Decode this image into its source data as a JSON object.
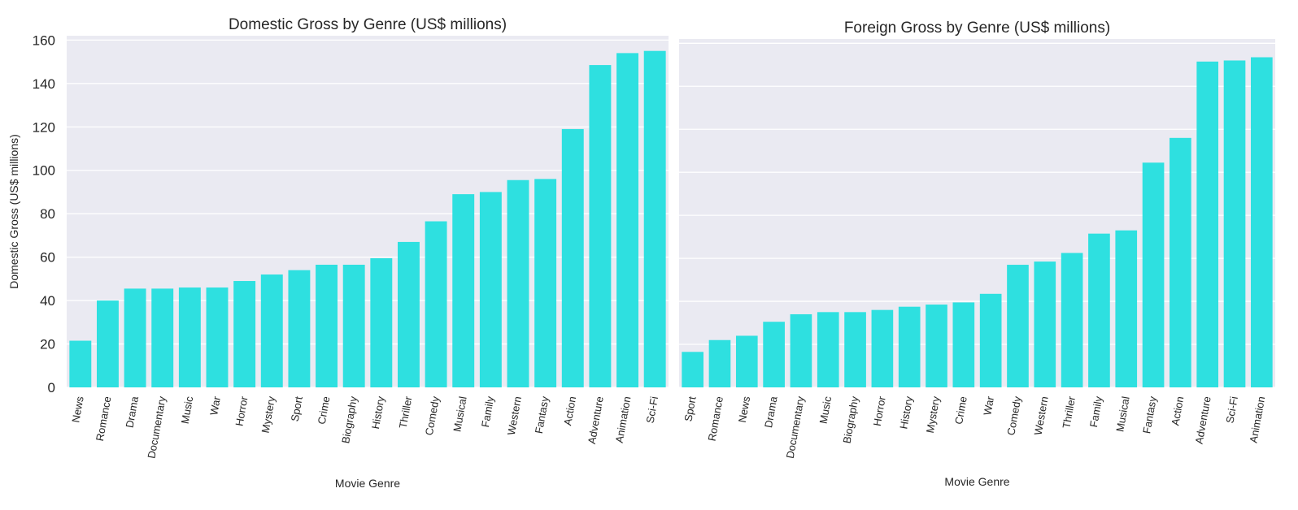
{
  "colors": {
    "bar": "#2ee0e0",
    "plot_background": "#eaeaf2",
    "grid": "#ffffff",
    "text": "#262626"
  },
  "chart_data": [
    {
      "type": "bar",
      "title": "Domestic Gross by Genre (US$ millions)",
      "xlabel": "Movie Genre",
      "ylabel": "Domestic Gross (US$ millions)",
      "ylim": [
        0,
        162
      ],
      "yticks": [
        0,
        20,
        40,
        60,
        80,
        100,
        120,
        140,
        160
      ],
      "show_ytick_labels": true,
      "grid": true,
      "categories": [
        "News",
        "Romance",
        "Drama",
        "Documentary",
        "Music",
        "War",
        "Horror",
        "Mystery",
        "Sport",
        "Crime",
        "Biography",
        "History",
        "Thriller",
        "Comedy",
        "Musical",
        "Family",
        "Western",
        "Fantasy",
        "Action",
        "Adventure",
        "Animation",
        "Sci-Fi"
      ],
      "values": [
        21.5,
        40,
        45.5,
        45.5,
        46,
        46,
        49,
        52,
        54,
        56.5,
        56.5,
        59.5,
        67,
        76.5,
        89,
        90,
        95.5,
        96,
        119,
        148.5,
        154,
        155
      ]
    },
    {
      "type": "bar",
      "title": "Foreign Gross by Genre (US$ millions)",
      "xlabel": "Movie Genre",
      "ylabel": "",
      "ylim": [
        0,
        162
      ],
      "yticks": [
        0,
        20,
        40,
        60,
        80,
        100,
        120,
        140,
        160
      ],
      "show_ytick_labels": false,
      "grid": true,
      "categories": [
        "Sport",
        "Romance",
        "News",
        "Drama",
        "Documentary",
        "Music",
        "Biography",
        "Horror",
        "History",
        "Mystery",
        "Crime",
        "War",
        "Comedy",
        "Western",
        "Thriller",
        "Family",
        "Musical",
        "Fantasy",
        "Action",
        "Adventure",
        "Sci-Fi",
        "Animation"
      ],
      "values": [
        16.5,
        22,
        24,
        30.5,
        34,
        35,
        35,
        36,
        37.5,
        38.5,
        39.5,
        43.5,
        57,
        58.5,
        62.5,
        71.5,
        73,
        104.5,
        116,
        151.5,
        152,
        153.5
      ]
    }
  ]
}
